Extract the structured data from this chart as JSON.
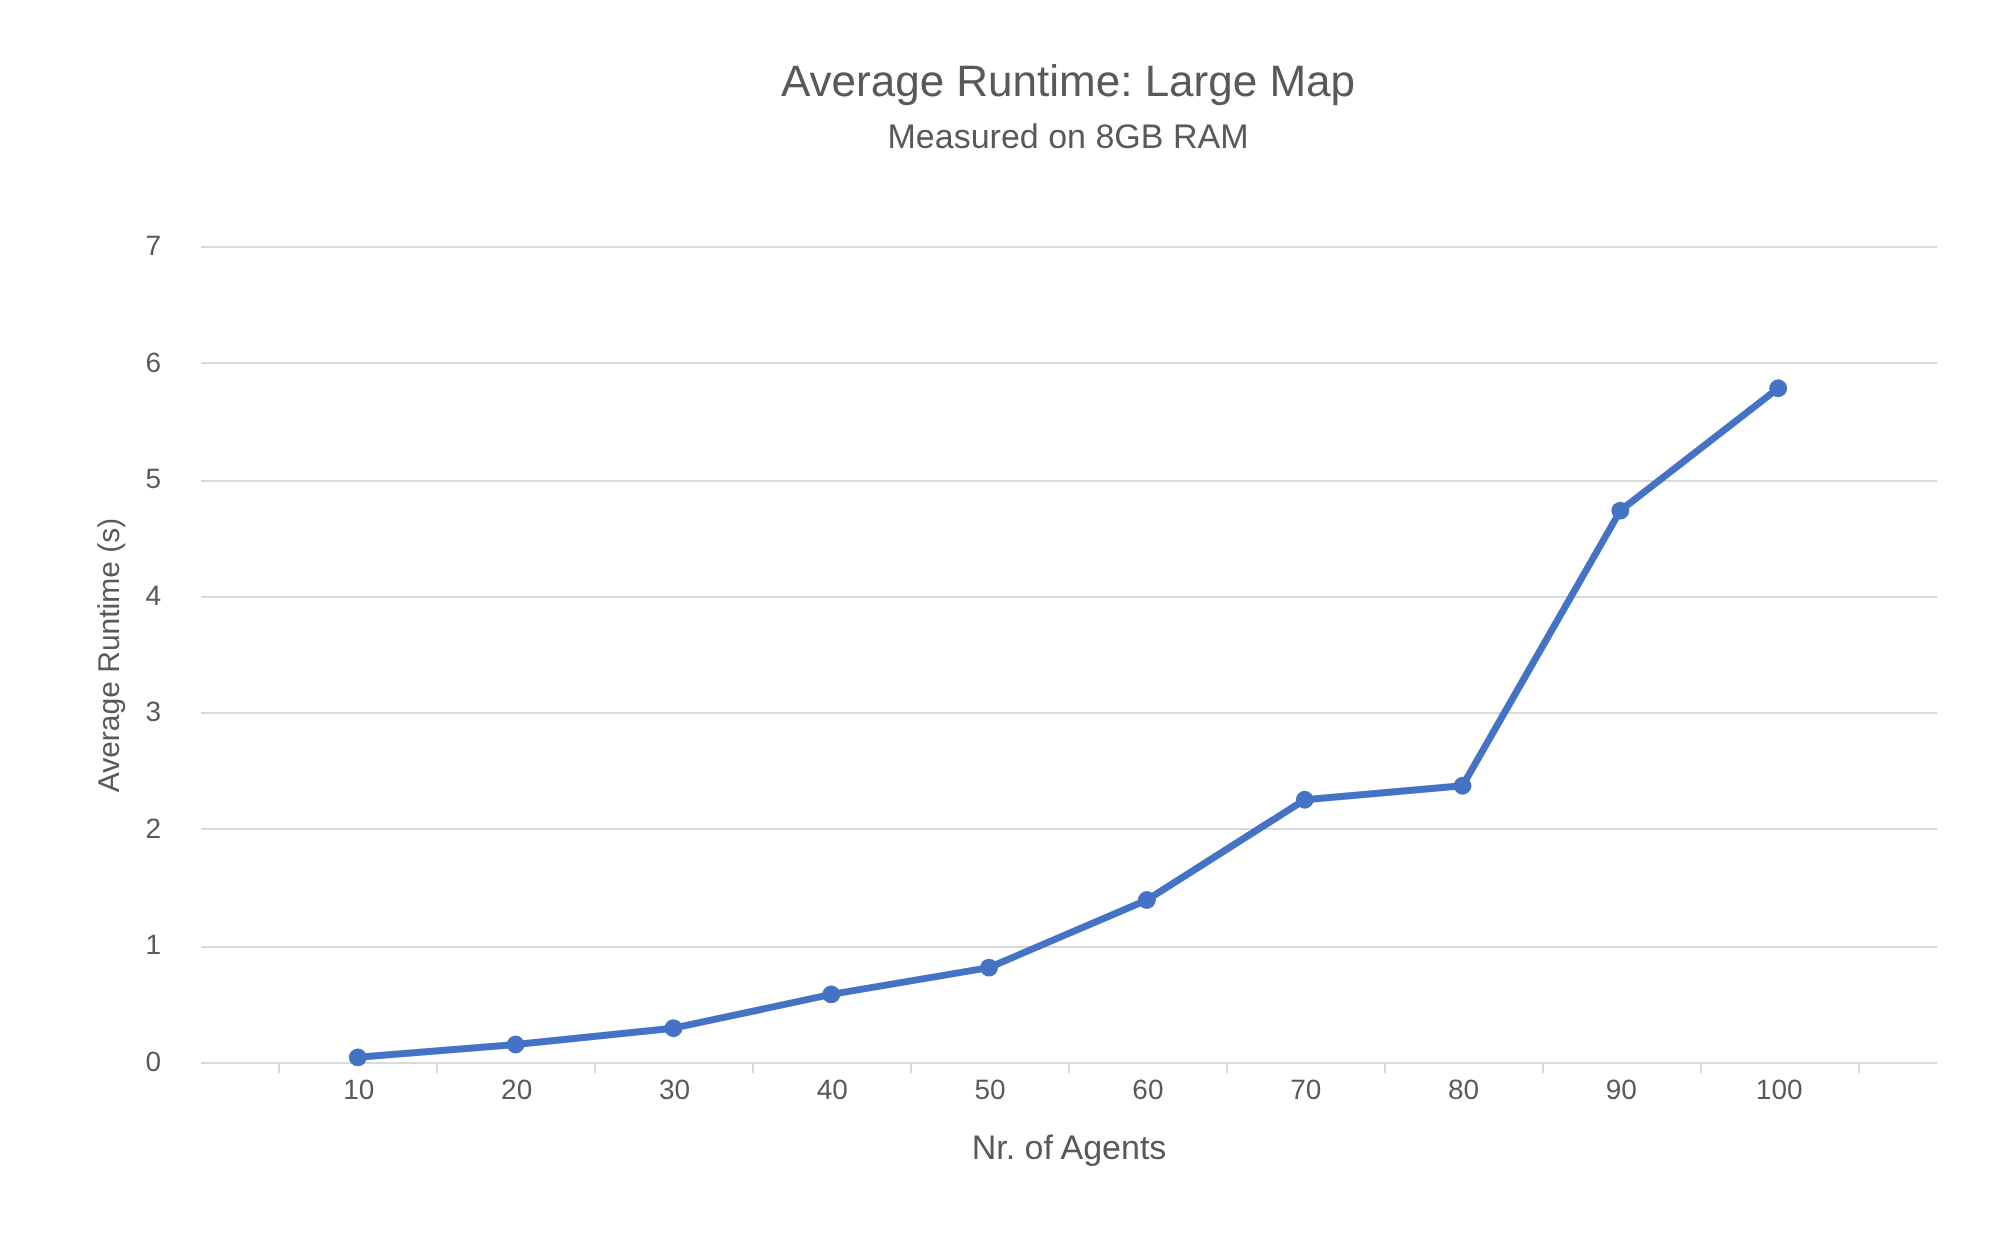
{
  "chart_data": {
    "type": "line",
    "title": "Average Runtime: Large Map",
    "subtitle": "Measured on 8GB RAM",
    "xlabel": "Nr. of Agents",
    "ylabel": "Average Runtime (s)",
    "categories": [
      "10",
      "20",
      "30",
      "40",
      "50",
      "60",
      "70",
      "80",
      "90",
      "100"
    ],
    "series": [
      {
        "color": "#4472c4",
        "values": [
          0.04,
          0.15,
          0.29,
          0.58,
          0.81,
          1.39,
          2.25,
          2.37,
          4.73,
          5.78
        ]
      }
    ],
    "ylim": [
      0,
      7
    ],
    "yticks": [
      0,
      1,
      2,
      3,
      4,
      5,
      6,
      7
    ],
    "grid": "y",
    "legend": false,
    "marker": "circle",
    "line_style": "solid"
  }
}
